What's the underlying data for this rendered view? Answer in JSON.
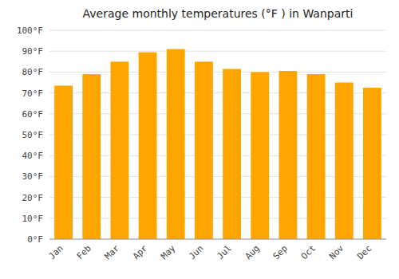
{
  "chart_data": {
    "type": "bar",
    "title": "Average monthly temperatures (°F ) in Wanparti",
    "categories": [
      "Jan",
      "Feb",
      "Mar",
      "Apr",
      "May",
      "Jun",
      "Jul",
      "Aug",
      "Sep",
      "Oct",
      "Nov",
      "Dec"
    ],
    "values": [
      73.5,
      79,
      85,
      89.5,
      91,
      85,
      81.5,
      80,
      80.5,
      79,
      75,
      72.5
    ],
    "color": "#FFA500",
    "ylim": [
      0,
      100
    ],
    "yticks": [
      {
        "value": 0,
        "label": "0°F"
      },
      {
        "value": 10,
        "label": "10°F"
      },
      {
        "value": 20,
        "label": "20°F"
      },
      {
        "value": 30,
        "label": "30°F"
      },
      {
        "value": 40,
        "label": "40°F"
      },
      {
        "value": 50,
        "label": "50°F"
      },
      {
        "value": 60,
        "label": "60°F"
      },
      {
        "value": 70,
        "label": "70°F"
      },
      {
        "value": 80,
        "label": "80°F"
      },
      {
        "value": 90,
        "label": "90°F"
      },
      {
        "value": 100,
        "label": "100°F"
      }
    ],
    "grid": true
  }
}
